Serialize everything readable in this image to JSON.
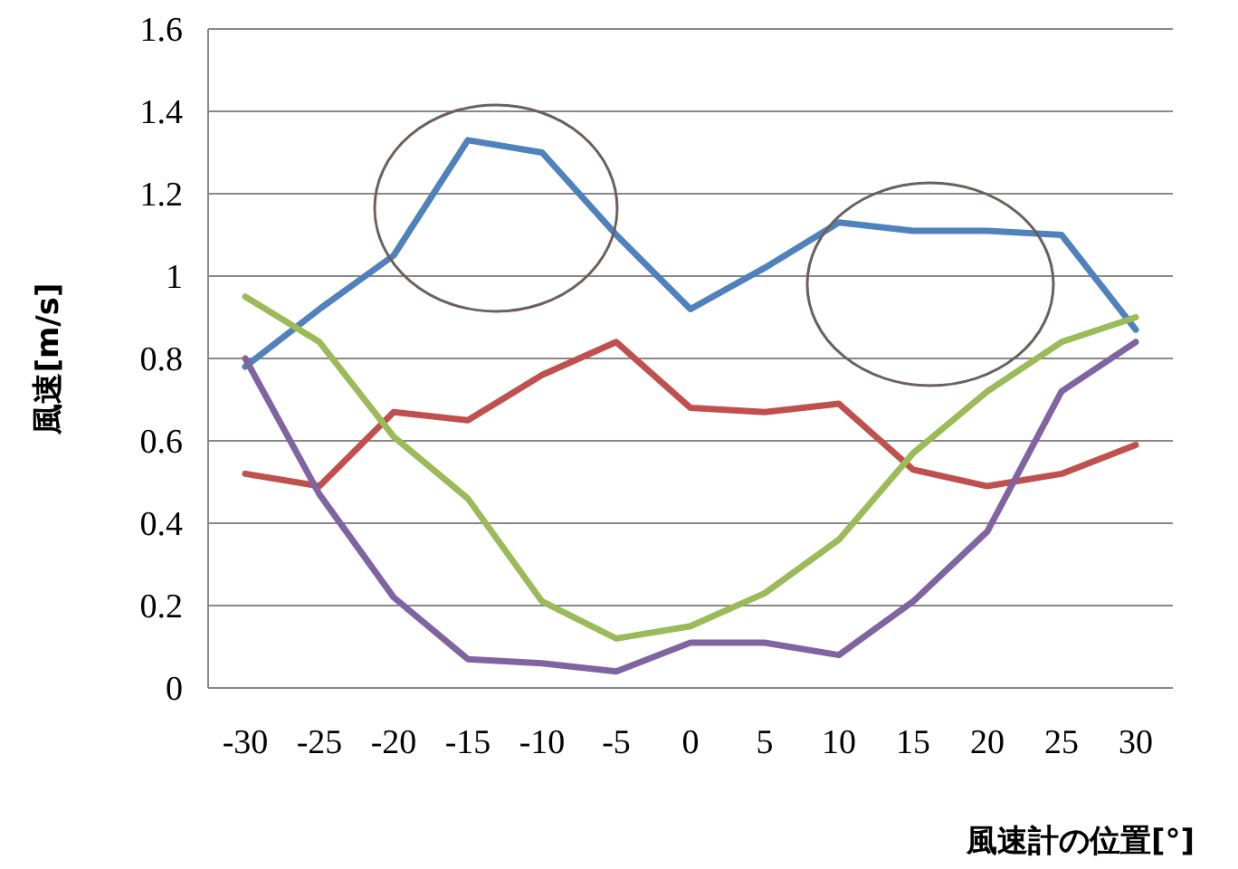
{
  "chart_data": {
    "type": "line",
    "xlabel": "風速計の位置[°]",
    "ylabel": "風速[m/s]",
    "categories": [
      "-30",
      "-25",
      "-20",
      "-15",
      "-10",
      "-5",
      "0",
      "5",
      "10",
      "15",
      "20",
      "25",
      "30"
    ],
    "series": [
      {
        "color": "#4f81bd",
        "values": [
          0.78,
          0.92,
          1.05,
          1.33,
          1.3,
          1.1,
          0.92,
          1.02,
          1.13,
          1.11,
          1.11,
          1.1,
          0.87
        ]
      },
      {
        "color": "#c0504d",
        "values": [
          0.52,
          0.49,
          0.67,
          0.65,
          0.76,
          0.84,
          0.68,
          0.67,
          0.69,
          0.53,
          0.49,
          0.52,
          0.59
        ]
      },
      {
        "color": "#9bbb59",
        "values": [
          0.95,
          0.84,
          0.61,
          0.46,
          0.21,
          0.12,
          0.15,
          0.23,
          0.36,
          0.57,
          0.72,
          0.84,
          0.9
        ]
      },
      {
        "color": "#8064a2",
        "values": [
          0.8,
          0.47,
          0.22,
          0.07,
          0.06,
          0.04,
          0.11,
          0.11,
          0.08,
          0.21,
          0.38,
          0.72,
          0.84
        ]
      }
    ],
    "ylim": [
      0,
      1.6
    ],
    "yticks": [
      0,
      0.2,
      0.4,
      0.6,
      0.8,
      1,
      1.2,
      1.4,
      1.6
    ],
    "grid": "y",
    "marker": "none",
    "line_style": "solid"
  }
}
